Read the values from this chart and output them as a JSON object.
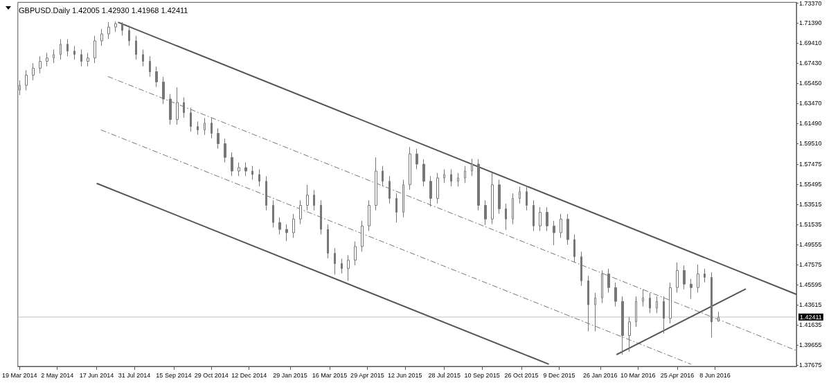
{
  "chart_data": {
    "type": "candlestick",
    "title": "GBPUSD.Daily 1.42005 1.42930 1.41968 1.42411",
    "color": "#777777",
    "x": [
      "2014-03-19",
      "2014-03-27",
      "2014-04-04",
      "2014-04-12",
      "2014-04-20",
      "2014-04-28",
      "2014-05-06",
      "2014-05-14",
      "2014-05-22",
      "2014-05-30",
      "2014-06-07",
      "2014-06-15",
      "2014-06-23",
      "2014-07-01",
      "2014-07-09",
      "2014-07-17",
      "2014-07-25",
      "2014-08-02",
      "2014-08-10",
      "2014-08-18",
      "2014-08-26",
      "2014-09-03",
      "2014-09-11",
      "2014-09-19",
      "2014-09-27",
      "2014-10-05",
      "2014-10-13",
      "2014-10-21",
      "2014-10-29",
      "2014-11-06",
      "2014-11-14",
      "2014-11-22",
      "2014-11-30",
      "2014-12-08",
      "2014-12-16",
      "2014-12-24",
      "2015-01-01",
      "2015-01-09",
      "2015-01-17",
      "2015-01-25",
      "2015-02-02",
      "2015-02-10",
      "2015-02-18",
      "2015-02-26",
      "2015-03-06",
      "2015-03-14",
      "2015-03-22",
      "2015-03-30",
      "2015-04-07",
      "2015-04-15",
      "2015-04-23",
      "2015-05-01",
      "2015-05-09",
      "2015-05-17",
      "2015-05-25",
      "2015-06-02",
      "2015-06-10",
      "2015-06-18",
      "2015-06-26",
      "2015-07-04",
      "2015-07-12",
      "2015-07-20",
      "2015-07-28",
      "2015-08-05",
      "2015-08-13",
      "2015-08-21",
      "2015-08-29",
      "2015-09-06",
      "2015-09-14",
      "2015-09-22",
      "2015-09-30",
      "2015-10-08",
      "2015-10-16",
      "2015-10-24",
      "2015-11-01",
      "2015-11-09",
      "2015-11-17",
      "2015-11-25",
      "2015-12-03",
      "2015-12-11",
      "2015-12-19",
      "2015-12-27",
      "2016-01-04",
      "2016-01-12",
      "2016-01-20",
      "2016-01-28",
      "2016-02-05",
      "2016-02-13",
      "2016-02-21",
      "2016-02-29",
      "2016-03-08",
      "2016-03-16",
      "2016-03-24",
      "2016-04-01",
      "2016-04-09",
      "2016-04-17",
      "2016-04-25",
      "2016-05-03",
      "2016-05-11",
      "2016-05-19",
      "2016-05-27",
      "2016-06-04",
      "2016-06-12"
    ],
    "ohlc": [
      [
        1.648,
        1.6576,
        1.643,
        1.6526
      ],
      [
        1.6526,
        1.6677,
        1.6476,
        1.6627
      ],
      [
        1.6627,
        1.6745,
        1.6577,
        1.6695
      ],
      [
        1.6695,
        1.6813,
        1.6645,
        1.6763
      ],
      [
        1.6763,
        1.6846,
        1.6713,
        1.6796
      ],
      [
        1.6796,
        1.688,
        1.6746,
        1.683
      ],
      [
        1.683,
        1.6982,
        1.678,
        1.6932
      ],
      [
        1.6932,
        1.6982,
        1.6814,
        1.6864
      ],
      [
        1.6864,
        1.6914,
        1.678,
        1.683
      ],
      [
        1.683,
        1.688,
        1.6713,
        1.6763
      ],
      [
        1.6763,
        1.6846,
        1.6713,
        1.6796
      ],
      [
        1.6796,
        1.7015,
        1.6746,
        1.6965
      ],
      [
        1.6965,
        1.7083,
        1.6915,
        1.7033
      ],
      [
        1.7033,
        1.7151,
        1.6983,
        1.7101
      ],
      [
        1.7101,
        1.7155,
        1.7051,
        1.7134
      ],
      [
        1.7134,
        1.715,
        1.7017,
        1.7067
      ],
      [
        1.7067,
        1.7117,
        1.6915,
        1.6965
      ],
      [
        1.6965,
        1.7015,
        1.678,
        1.683
      ],
      [
        1.683,
        1.688,
        1.6713,
        1.6763
      ],
      [
        1.6763,
        1.6813,
        1.6611,
        1.6661
      ],
      [
        1.6661,
        1.6711,
        1.651,
        1.656
      ],
      [
        1.656,
        1.661,
        1.6341,
        1.6391
      ],
      [
        1.6391,
        1.6441,
        1.6138,
        1.6188
      ],
      [
        1.6188,
        1.6506,
        1.6138,
        1.6357
      ],
      [
        1.6357,
        1.6407,
        1.6206,
        1.6256
      ],
      [
        1.6256,
        1.6306,
        1.607,
        1.612
      ],
      [
        1.612,
        1.617,
        1.6037,
        1.6087
      ],
      [
        1.6087,
        1.6204,
        1.6037,
        1.6154
      ],
      [
        1.6154,
        1.6204,
        1.6003,
        1.6053
      ],
      [
        1.6053,
        1.6103,
        1.5901,
        1.5951
      ],
      [
        1.5951,
        1.6001,
        1.5766,
        1.5816
      ],
      [
        1.5816,
        1.5866,
        1.5631,
        1.5681
      ],
      [
        1.5681,
        1.5765,
        1.5631,
        1.5715
      ],
      [
        1.5715,
        1.5765,
        1.5631,
        1.5681
      ],
      [
        1.5681,
        1.5731,
        1.5597,
        1.5647
      ],
      [
        1.5647,
        1.5697,
        1.553,
        1.558
      ],
      [
        1.558,
        1.563,
        1.5293,
        1.5343
      ],
      [
        1.5343,
        1.5393,
        1.5124,
        1.5174
      ],
      [
        1.5174,
        1.5224,
        1.5056,
        1.5106
      ],
      [
        1.5106,
        1.5156,
        1.499,
        1.5073
      ],
      [
        1.5073,
        1.5258,
        1.5023,
        1.5208
      ],
      [
        1.5208,
        1.5393,
        1.5158,
        1.5343
      ],
      [
        1.5343,
        1.5546,
        1.5293,
        1.5444
      ],
      [
        1.5444,
        1.5494,
        1.5293,
        1.5343
      ],
      [
        1.5343,
        1.5393,
        1.5056,
        1.5106
      ],
      [
        1.5106,
        1.5156,
        1.482,
        1.487
      ],
      [
        1.487,
        1.492,
        1.466,
        1.4768
      ],
      [
        1.4768,
        1.4818,
        1.467,
        1.472
      ],
      [
        1.472,
        1.4852,
        1.46,
        1.4802
      ],
      [
        1.4802,
        1.4987,
        1.4752,
        1.4937
      ],
      [
        1.4937,
        1.519,
        1.4887,
        1.514
      ],
      [
        1.514,
        1.5393,
        1.509,
        1.5343
      ],
      [
        1.5343,
        1.5816,
        1.5293,
        1.5681
      ],
      [
        1.5681,
        1.5731,
        1.553,
        1.558
      ],
      [
        1.558,
        1.563,
        1.5361,
        1.5411
      ],
      [
        1.5411,
        1.5461,
        1.5174,
        1.5275
      ],
      [
        1.5275,
        1.5596,
        1.5225,
        1.5546
      ],
      [
        1.5546,
        1.5918,
        1.5496,
        1.585
      ],
      [
        1.585,
        1.59,
        1.5699,
        1.5749
      ],
      [
        1.5749,
        1.5799,
        1.553,
        1.558
      ],
      [
        1.558,
        1.563,
        1.533,
        1.5411
      ],
      [
        1.5411,
        1.5663,
        1.5361,
        1.5613
      ],
      [
        1.5613,
        1.5697,
        1.5563,
        1.5647
      ],
      [
        1.5647,
        1.5697,
        1.553,
        1.558
      ],
      [
        1.558,
        1.5663,
        1.553,
        1.5613
      ],
      [
        1.5613,
        1.5731,
        1.5563,
        1.5681
      ],
      [
        1.5681,
        1.5803,
        1.5631,
        1.5749
      ],
      [
        1.5749,
        1.5799,
        1.5293,
        1.5343
      ],
      [
        1.5343,
        1.5393,
        1.515,
        1.5208
      ],
      [
        1.5208,
        1.5661,
        1.5158,
        1.5546
      ],
      [
        1.5546,
        1.5596,
        1.5259,
        1.5309
      ],
      [
        1.5309,
        1.5359,
        1.51,
        1.5208
      ],
      [
        1.5208,
        1.5461,
        1.5158,
        1.5411
      ],
      [
        1.5411,
        1.5528,
        1.5361,
        1.5478
      ],
      [
        1.5478,
        1.5528,
        1.5293,
        1.5343
      ],
      [
        1.5343,
        1.5393,
        1.509,
        1.514
      ],
      [
        1.514,
        1.5325,
        1.509,
        1.5275
      ],
      [
        1.5275,
        1.5325,
        1.509,
        1.514
      ],
      [
        1.514,
        1.519,
        1.495,
        1.5073
      ],
      [
        1.5073,
        1.5258,
        1.5023,
        1.5208
      ],
      [
        1.5208,
        1.5258,
        1.4955,
        1.5005
      ],
      [
        1.5005,
        1.5055,
        1.4786,
        1.4836
      ],
      [
        1.4836,
        1.4886,
        1.4549,
        1.4599
      ],
      [
        1.4599,
        1.4649,
        1.41,
        1.4363
      ],
      [
        1.4363,
        1.448,
        1.41,
        1.443
      ],
      [
        1.443,
        1.47,
        1.438,
        1.4667
      ],
      [
        1.4667,
        1.4717,
        1.4482,
        1.4532
      ],
      [
        1.4532,
        1.4582,
        1.4346,
        1.4396
      ],
      [
        1.4396,
        1.4446,
        1.3871,
        1.4059
      ],
      [
        1.4059,
        1.4244,
        1.39,
        1.4194
      ],
      [
        1.4194,
        1.4446,
        1.4144,
        1.4396
      ],
      [
        1.4396,
        1.4514,
        1.4346,
        1.443
      ],
      [
        1.443,
        1.448,
        1.4279,
        1.4329
      ],
      [
        1.4329,
        1.4446,
        1.4279,
        1.4396
      ],
      [
        1.4396,
        1.4446,
        1.408,
        1.4228
      ],
      [
        1.4228,
        1.4582,
        1.4178,
        1.4532
      ],
      [
        1.4532,
        1.478,
        1.4482,
        1.4701
      ],
      [
        1.4701,
        1.4751,
        1.4516,
        1.4566
      ],
      [
        1.4566,
        1.4616,
        1.442,
        1.4532
      ],
      [
        1.4532,
        1.476,
        1.4482,
        1.4667
      ],
      [
        1.4667,
        1.4717,
        1.4583,
        1.4633
      ],
      [
        1.4633,
        1.4683,
        1.4038,
        1.4194
      ],
      [
        1.42005,
        1.4293,
        1.41968,
        1.42411
      ]
    ],
    "series": [
      {
        "type": "line",
        "color": "#555555",
        "line_style": "solid",
        "x": [
          "2014-07-12",
          "2016-09-11"
        ],
        "values": [
          1.7148,
          1.4465
        ]
      },
      {
        "type": "line",
        "color": "#777777",
        "line_style": "dashed",
        "x": [
          "2014-06-30",
          "2016-09-11"
        ],
        "values": [
          1.6614,
          1.3911
        ]
      },
      {
        "type": "line",
        "color": "#777777",
        "line_style": "dashed",
        "x": [
          "2014-06-22",
          "2016-05-11"
        ],
        "values": [
          1.6087,
          1.3776
        ]
      },
      {
        "type": "line",
        "color": "#555555",
        "line_style": "solid",
        "x": [
          "2014-06-17",
          "2015-11-27"
        ],
        "values": [
          1.556,
          1.3776
        ]
      },
      {
        "type": "line",
        "color": "#555555",
        "line_style": "solid",
        "x": [
          "2016-02-14",
          "2016-07-14"
        ],
        "values": [
          1.3871,
          1.4519
        ]
      }
    ],
    "ref_lines": [
      {
        "axis": "y",
        "value": 1.42411,
        "label": "1.42411",
        "color": "#c0c0c0"
      }
    ],
    "xlim": [
      "2014-03-17",
      "2016-09-11"
    ],
    "xticks": [
      {
        "value": "2014-03-19",
        "label": "19 Mar 2014"
      },
      {
        "value": "2014-05-02",
        "label": "2 May 2014"
      },
      {
        "value": "2014-06-17",
        "label": "17 Jun 2014"
      },
      {
        "value": "2014-07-31",
        "label": "31 Jul 2014"
      },
      {
        "value": "2014-09-15",
        "label": "15 Sep 2014"
      },
      {
        "value": "2014-10-29",
        "label": "29 Oct 2014"
      },
      {
        "value": "2014-12-12",
        "label": "12 Dec 2014"
      },
      {
        "value": "2015-01-29",
        "label": "29 Jan 2015"
      },
      {
        "value": "2015-03-16",
        "label": "16 Mar 2015"
      },
      {
        "value": "2015-04-29",
        "label": "29 Apr 2015"
      },
      {
        "value": "2015-06-12",
        "label": "12 Jun 2015"
      },
      {
        "value": "2015-07-28",
        "label": "28 Jul 2015"
      },
      {
        "value": "2015-09-10",
        "label": "10 Sep 2015"
      },
      {
        "value": "2015-10-26",
        "label": "26 Oct 2015"
      },
      {
        "value": "2015-12-09",
        "label": "9 Dec 2015"
      },
      {
        "value": "2016-01-26",
        "label": "26 Jan 2016"
      },
      {
        "value": "2016-03-10",
        "label": "10 Mar 2016"
      },
      {
        "value": "2016-04-25",
        "label": "25 Apr 2016"
      },
      {
        "value": "2016-06-08",
        "label": "8 Jun 2016"
      }
    ],
    "ylim": [
      1.3755,
      1.7345
    ],
    "yticks": [
      {
        "value": 1.37675,
        "label": "1.37675"
      },
      {
        "value": 1.39655,
        "label": "1.39655"
      },
      {
        "value": 1.41635,
        "label": "1.41635"
      },
      {
        "value": 1.43615,
        "label": "1.43615"
      },
      {
        "value": 1.45595,
        "label": "1.45595"
      },
      {
        "value": 1.47575,
        "label": "1.47575"
      },
      {
        "value": 1.49555,
        "label": "1.49555"
      },
      {
        "value": 1.51535,
        "label": "1.51535"
      },
      {
        "value": 1.53515,
        "label": "1.53515"
      },
      {
        "value": 1.55495,
        "label": "1.55495"
      },
      {
        "value": 1.57475,
        "label": "1.57475"
      },
      {
        "value": 1.5951,
        "label": "1.59510"
      },
      {
        "value": 1.6149,
        "label": "1.61490"
      },
      {
        "value": 1.6347,
        "label": "1.63470"
      },
      {
        "value": 1.6545,
        "label": "1.65450"
      },
      {
        "value": 1.6743,
        "label": "1.67430"
      },
      {
        "value": 1.6941,
        "label": "1.69410"
      },
      {
        "value": 1.7139,
        "label": "1.71390"
      },
      {
        "value": 1.7337,
        "label": "1.73370"
      }
    ],
    "grid": false
  }
}
